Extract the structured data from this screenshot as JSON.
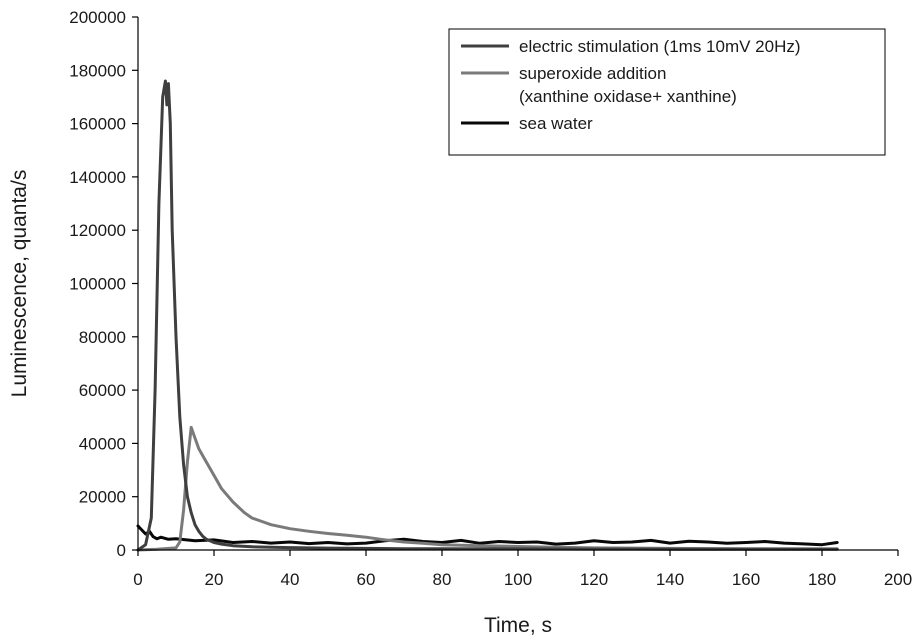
{
  "colors": {
    "electric": "#3f3f3f",
    "superoxide": "#7a7a7a",
    "seawater": "#080808"
  },
  "chart_data": {
    "type": "line",
    "title": "",
    "xlabel": "Time, s",
    "ylabel": "Luminescence, quanta/s",
    "xlim": [
      0,
      200
    ],
    "ylim": [
      0,
      200000
    ],
    "x_ticks": [
      "0",
      "20",
      "40",
      "60",
      "80",
      "100",
      "120",
      "140",
      "160",
      "180",
      "200"
    ],
    "y_ticks": [
      "0",
      "20000",
      "40000",
      "60000",
      "80000",
      "100000",
      "120000",
      "140000",
      "160000",
      "180000",
      "200000"
    ],
    "grid": false,
    "legend": {
      "placement": "top-right",
      "entries": [
        {
          "lines": [
            "electric stimulation (1ms 10mV 20Hz)"
          ],
          "series": "electric"
        },
        {
          "lines": [
            "superoxide addition",
            "(xanthine oxidase+ xanthine)"
          ],
          "series": "superoxide"
        },
        {
          "lines": [
            "sea water"
          ],
          "series": "seawater"
        }
      ]
    },
    "series": [
      {
        "id": "electric",
        "name": "electric stimulation (1ms 10mV 20Hz)",
        "color": "#3f3f3f",
        "x": [
          0,
          2,
          3.5,
          4.5,
          5.5,
          6.5,
          7.2,
          7.6,
          8,
          8.5,
          9,
          10,
          11,
          12,
          13,
          14,
          15,
          16,
          17,
          18,
          20,
          22,
          25,
          30,
          35,
          40,
          50,
          60,
          70,
          80,
          100,
          120,
          140,
          160,
          184
        ],
        "y": [
          0,
          2000,
          12000,
          60000,
          130000,
          170000,
          176000,
          167000,
          175000,
          160000,
          120000,
          80000,
          50000,
          32000,
          20000,
          14000,
          9500,
          7000,
          5200,
          4000,
          2800,
          2200,
          1600,
          1200,
          1000,
          900,
          700,
          600,
          500,
          450,
          400,
          350,
          300,
          300,
          300
        ]
      },
      {
        "id": "superoxide",
        "name": "superoxide addition (xanthine oxidase+ xanthine)",
        "color": "#7a7a7a",
        "x": [
          0,
          5,
          10,
          11,
          12,
          13,
          14,
          15,
          16,
          18,
          20,
          22,
          25,
          28,
          30,
          33,
          35,
          40,
          45,
          50,
          55,
          60,
          65,
          70,
          75,
          80,
          90,
          100,
          110,
          120,
          140,
          160,
          184
        ],
        "y": [
          0,
          300,
          800,
          3000,
          15000,
          33000,
          46000,
          42000,
          38000,
          33000,
          28000,
          23000,
          18000,
          14000,
          12000,
          10500,
          9500,
          8000,
          7000,
          6200,
          5500,
          4800,
          3800,
          3000,
          2500,
          2000,
          1600,
          1300,
          1000,
          800,
          600,
          500,
          400
        ]
      },
      {
        "id": "seawater",
        "name": "sea water",
        "color": "#080808",
        "x": [
          0,
          1,
          2,
          3,
          4,
          5,
          6,
          8,
          10,
          15,
          20,
          25,
          30,
          35,
          40,
          45,
          50,
          55,
          60,
          65,
          70,
          75,
          80,
          85,
          90,
          95,
          100,
          105,
          110,
          115,
          120,
          125,
          130,
          135,
          140,
          145,
          150,
          155,
          160,
          165,
          170,
          175,
          180,
          184
        ],
        "y": [
          9000,
          7500,
          6000,
          7000,
          5000,
          4200,
          4800,
          4000,
          4200,
          3500,
          3800,
          2800,
          3200,
          2600,
          3000,
          2400,
          2800,
          2300,
          2600,
          3500,
          4000,
          3200,
          2800,
          3600,
          2500,
          3200,
          2800,
          3000,
          2200,
          2600,
          3500,
          2800,
          3000,
          3600,
          2600,
          3300,
          3000,
          2500,
          2800,
          3200,
          2600,
          2300,
          2000,
          2800
        ]
      }
    ]
  }
}
